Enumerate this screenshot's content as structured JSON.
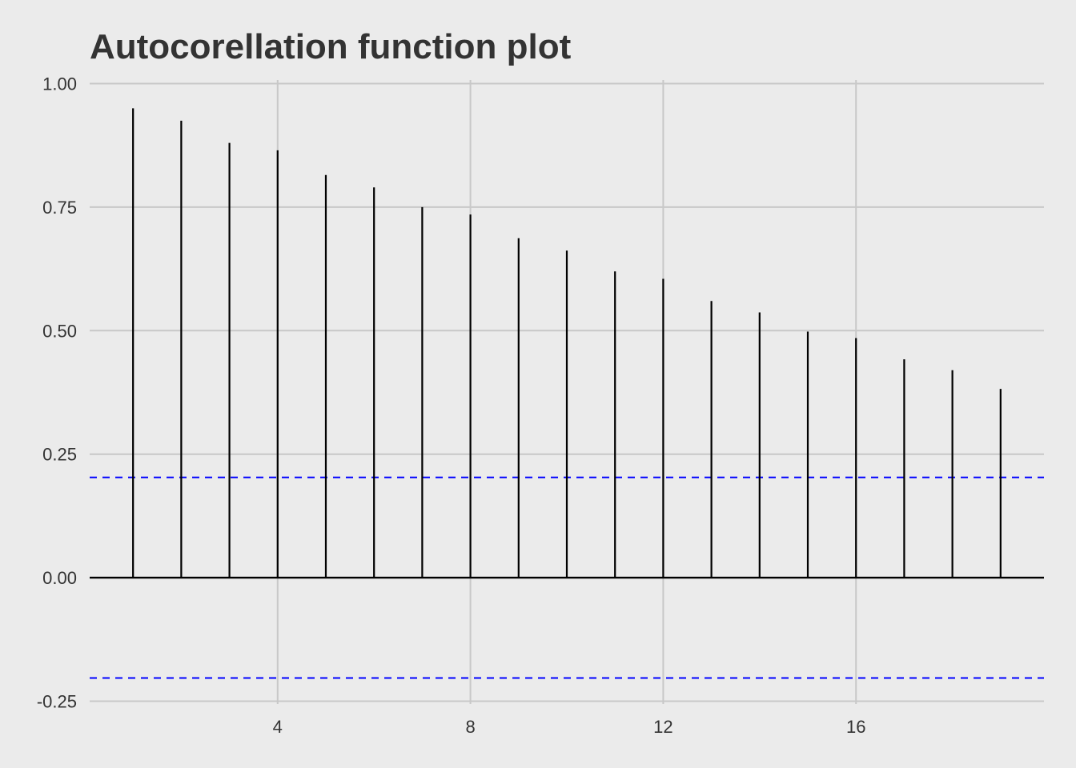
{
  "chart_data": {
    "type": "bar",
    "title": "Autocorellation function plot",
    "xlabel": "",
    "ylabel": "",
    "x": [
      1,
      2,
      3,
      4,
      5,
      6,
      7,
      8,
      9,
      10,
      11,
      12,
      13,
      14,
      15,
      16,
      17,
      18,
      19
    ],
    "series": [
      {
        "values": [
          0.95,
          0.925,
          0.88,
          0.865,
          0.815,
          0.79,
          0.75,
          0.735,
          0.687,
          0.662,
          0.62,
          0.605,
          0.56,
          0.537,
          0.498,
          0.485,
          0.442,
          0.42,
          0.382
        ]
      }
    ],
    "confidence_bounds": [
      0.203,
      -0.203
    ],
    "xlim": [
      0.1,
      19.9
    ],
    "ylim": [
      -0.25,
      1.0
    ],
    "xticks": [
      4,
      8,
      12,
      16
    ],
    "xtick_labels": [
      "4",
      "8",
      "12",
      "16"
    ],
    "yticks": [
      -0.25,
      0,
      0.25,
      0.5,
      0.75,
      1.0
    ],
    "ytick_labels": [
      "-0.25",
      "0.00",
      "0.25",
      "0.50",
      "0.75",
      "1.00"
    ],
    "grid": true,
    "colors": {
      "background": "#ebebeb",
      "grid": "#c8c8c8",
      "bar": "#000000",
      "zero_line": "#000000",
      "confidence": "#0000ff",
      "text": "#333333"
    }
  }
}
